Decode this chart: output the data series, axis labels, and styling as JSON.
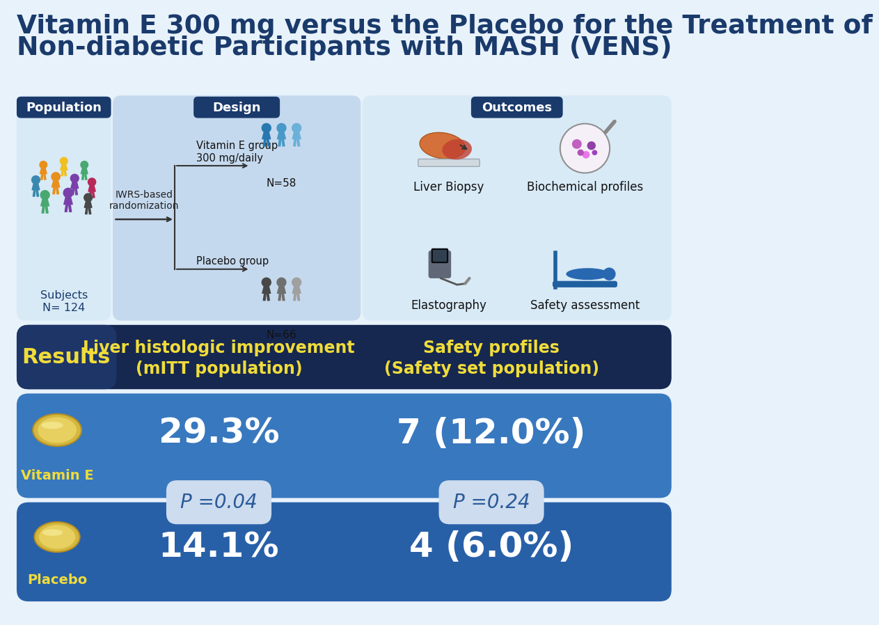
{
  "title_line1": "Vitamin E 300 mg versus the Placebo for the Treatment of",
  "title_line2": "Non-diabetic Participants with MASH (VENS)",
  "title_color": "#1a3a6b",
  "bg_color": "#e8f2fa",
  "section_label_bg": "#1a3a6b",
  "section_label_color": "#ffffff",
  "design_bg": "#c5d9ee",
  "population_bg": "#d8eaf6",
  "outcomes_bg": "#d8eaf6",
  "subjects_label": "Subjects\nN= 124",
  "randomization_label": "IWRS-based\nrandomization",
  "vitE_group_label": "Vitamin E group\n300 mg/daily",
  "vitE_n": "N=58",
  "placebo_group_label": "Placebo group",
  "placebo_n": "N=66",
  "outcomes": [
    "Liver Biopsy",
    "Biochemical profiles",
    "Elastography",
    "Safety assessment"
  ],
  "results_bg_dark": "#162850",
  "results_label": "Results",
  "results_label_color": "#f0dc3a",
  "results_label_bg": "#1e3568",
  "col1_header_line1": "Liver histologic improvement",
  "col1_header_line2": "(mITT population)",
  "col2_header_line1": "Safety profiles",
  "col2_header_line2": "(Safety set population)",
  "header_color": "#f0dc3a",
  "vite_row_bg": "#3878be",
  "placebo_row_bg": "#2860a8",
  "vite_value1": "29.3%",
  "vite_value2": "7 (12.0%)",
  "placebo_value1": "14.1%",
  "placebo_value2": "4 (6.0%)",
  "p_value1": "P =0.04",
  "p_value2": "P =0.24",
  "p_box_bg": "#cddcee",
  "p_box_text_color": "#2a5a9a",
  "value_color": "#ffffff",
  "vite_label": "Vitamin E",
  "placebo_label": "Placebo",
  "row_label_color": "#f0dc3a",
  "people_colors": [
    "#e8901c",
    "#f0c020",
    "#48a870",
    "#3888b0",
    "#7840a8",
    "#b82858",
    "#484848"
  ],
  "vite_people_colors": [
    "#2878b0",
    "#4898c8",
    "#6ab0d8"
  ],
  "placebo_people_colors": [
    "#484848",
    "#707070",
    "#a0a0a0"
  ]
}
